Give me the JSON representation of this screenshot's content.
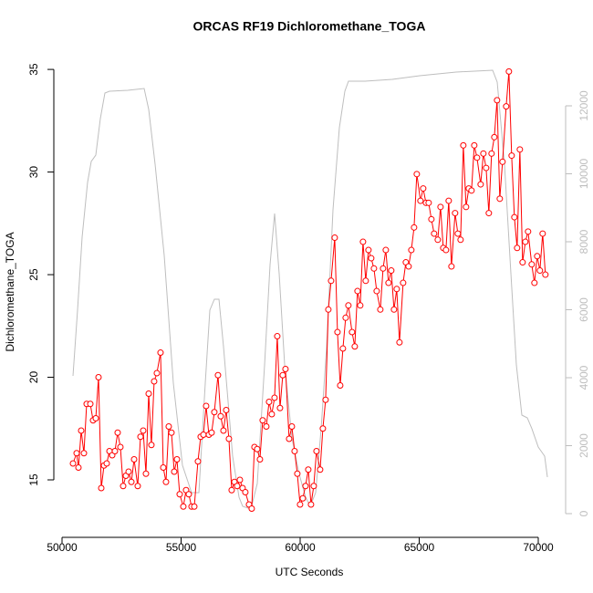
{
  "chart_data": {
    "type": "line",
    "title": "ORCAS RF19 Dichloromethane_TOGA",
    "x_label": "UTC Seconds",
    "y_label": "Dichloromethane_TOGA",
    "xlim": [
      49655,
      71149
    ],
    "xticks": [
      50000,
      55000,
      60000,
      65000,
      70000
    ],
    "ylim": [
      12.2,
      35.76
    ],
    "yticks": [
      15,
      20,
      25,
      30,
      35
    ],
    "y2lim": [
      -698,
      13530
    ],
    "y2ticks": [
      0,
      2000,
      4000,
      6000,
      8000,
      10000,
      12000
    ],
    "series": [
      {
        "color": "#ff0000",
        "marker": "circle",
        "x": [
          50460,
          50613,
          50689,
          50804,
          50919,
          51034,
          51187,
          51302,
          51417,
          51532,
          51647,
          51762,
          51877,
          51992,
          52107,
          52221,
          52336,
          52451,
          52566,
          52681,
          52796,
          52911,
          53026,
          53179,
          53294,
          53409,
          53524,
          53639,
          53753,
          53868,
          53983,
          54136,
          54251,
          54366,
          54481,
          54596,
          54711,
          54826,
          54941,
          55094,
          55209,
          55324,
          55439,
          55554,
          55707,
          55822,
          55937,
          56051,
          56166,
          56281,
          56396,
          56549,
          56664,
          56779,
          56894,
          57009,
          57124,
          57239,
          57354,
          57469,
          57583,
          57698,
          57852,
          57966,
          58081,
          58196,
          58311,
          58426,
          58579,
          58694,
          58809,
          58924,
          59039,
          59154,
          59269,
          59384,
          59537,
          59652,
          59767,
          59881,
          59996,
          60111,
          60226,
          60341,
          60456,
          60571,
          60686,
          60839,
          60954,
          61069,
          61184,
          61299,
          61452,
          61567,
          61682,
          61796,
          61911,
          62026,
          62179,
          62294,
          62409,
          62524,
          62639,
          62754,
          62869,
          62984,
          63099,
          63214,
          63367,
          63482,
          63597,
          63711,
          63826,
          63941,
          64056,
          64171,
          64324,
          64439,
          64554,
          64669,
          64784,
          64899,
          65052,
          65167,
          65282,
          65397,
          65512,
          65626,
          65780,
          65895,
          66009,
          66124,
          66239,
          66354,
          66507,
          66622,
          66737,
          66852,
          66967,
          67082,
          67197,
          67312,
          67427,
          67580,
          67695,
          67810,
          67924,
          68039,
          68154,
          68269,
          68384,
          68499,
          68652,
          68767,
          68882,
          68997,
          69112,
          69227,
          69342,
          69456,
          69571,
          69725,
          69839,
          69954,
          70069,
          70184,
          70299
        ],
        "values": [
          15.8,
          16.3,
          15.6,
          17.4,
          16.3,
          18.7,
          18.7,
          17.9,
          18.0,
          20.0,
          14.6,
          15.7,
          15.8,
          16.4,
          16.2,
          16.4,
          17.3,
          16.6,
          14.7,
          15.2,
          15.4,
          14.9,
          16.0,
          14.7,
          17.1,
          17.4,
          15.3,
          19.2,
          16.7,
          19.8,
          20.2,
          21.2,
          15.6,
          14.9,
          17.6,
          17.3,
          15.4,
          16.0,
          14.3,
          13.7,
          14.5,
          14.3,
          13.7,
          13.7,
          15.9,
          17.1,
          17.2,
          18.6,
          17.2,
          17.3,
          18.3,
          20.1,
          18.1,
          17.4,
          18.4,
          17.0,
          14.5,
          14.9,
          14.7,
          15.0,
          14.6,
          14.4,
          13.8,
          13.6,
          16.6,
          16.5,
          16.0,
          17.9,
          17.6,
          18.8,
          18.2,
          19.0,
          22.0,
          18.5,
          20.1,
          20.4,
          17.0,
          17.6,
          16.4,
          15.3,
          13.8,
          14.1,
          14.7,
          15.5,
          13.8,
          14.7,
          16.4,
          15.5,
          17.5,
          18.9,
          23.3,
          24.7,
          26.8,
          22.2,
          19.6,
          21.4,
          22.9,
          23.5,
          22.2,
          21.5,
          24.2,
          23.5,
          26.6,
          24.7,
          26.2,
          25.8,
          25.3,
          24.2,
          23.3,
          25.3,
          26.2,
          24.6,
          25.2,
          23.3,
          24.3,
          21.7,
          24.6,
          25.6,
          25.4,
          26.2,
          27.3,
          29.9,
          28.6,
          29.2,
          28.5,
          28.5,
          27.7,
          27.0,
          26.7,
          28.3,
          26.3,
          26.2,
          28.6,
          25.4,
          28.0,
          27.0,
          26.7,
          31.3,
          28.3,
          29.2,
          29.1,
          31.3,
          30.7,
          29.4,
          30.9,
          30.2,
          28.0,
          30.9,
          31.7,
          33.5,
          28.7,
          30.5,
          33.2,
          34.9,
          30.8,
          27.8,
          26.3,
          31.1,
          25.6,
          26.6,
          27.1,
          25.5,
          24.6,
          25.9,
          25.2,
          27.0,
          25.0
        ]
      },
      {
        "color": "#bebebe",
        "axis": "y2",
        "x": [
          50460,
          50651,
          50843,
          51072,
          51226,
          51417,
          51609,
          51800,
          51992,
          52758,
          53448,
          53640,
          53908,
          54291,
          54674,
          55057,
          55440,
          55747,
          56015,
          56207,
          56398,
          56590,
          56781,
          57164,
          57433,
          57586,
          57931,
          58199,
          58506,
          58736,
          58927,
          59119,
          59349,
          59655,
          59962,
          60230,
          60421,
          60651,
          60881,
          61111,
          61379,
          61647,
          61877,
          62030,
          62720,
          63869,
          65019,
          66552,
          68084,
          68276,
          68582,
          68851,
          69080,
          69310,
          69540,
          69732,
          70000,
          70268,
          70383
        ],
        "values": [
          4054,
          5987,
          8134,
          9745,
          10362,
          10550,
          11624,
          12376,
          12430,
          12456,
          12510,
          11893,
          10282,
          7597,
          3839,
          1423,
          617,
          617,
          3839,
          5987,
          6309,
          6309,
          4913,
          1691,
          483,
          215,
          134,
          886,
          4376,
          7329,
          8832,
          7060,
          4376,
          2228,
          1154,
          483,
          215,
          617,
          2497,
          4913,
          8940,
          11356,
          12430,
          12725,
          12725,
          12779,
          12886,
          12993,
          13047,
          12698,
          10282,
          7060,
          4376,
          2899,
          2819,
          2497,
          1960,
          1691,
          1074
        ]
      }
    ]
  }
}
